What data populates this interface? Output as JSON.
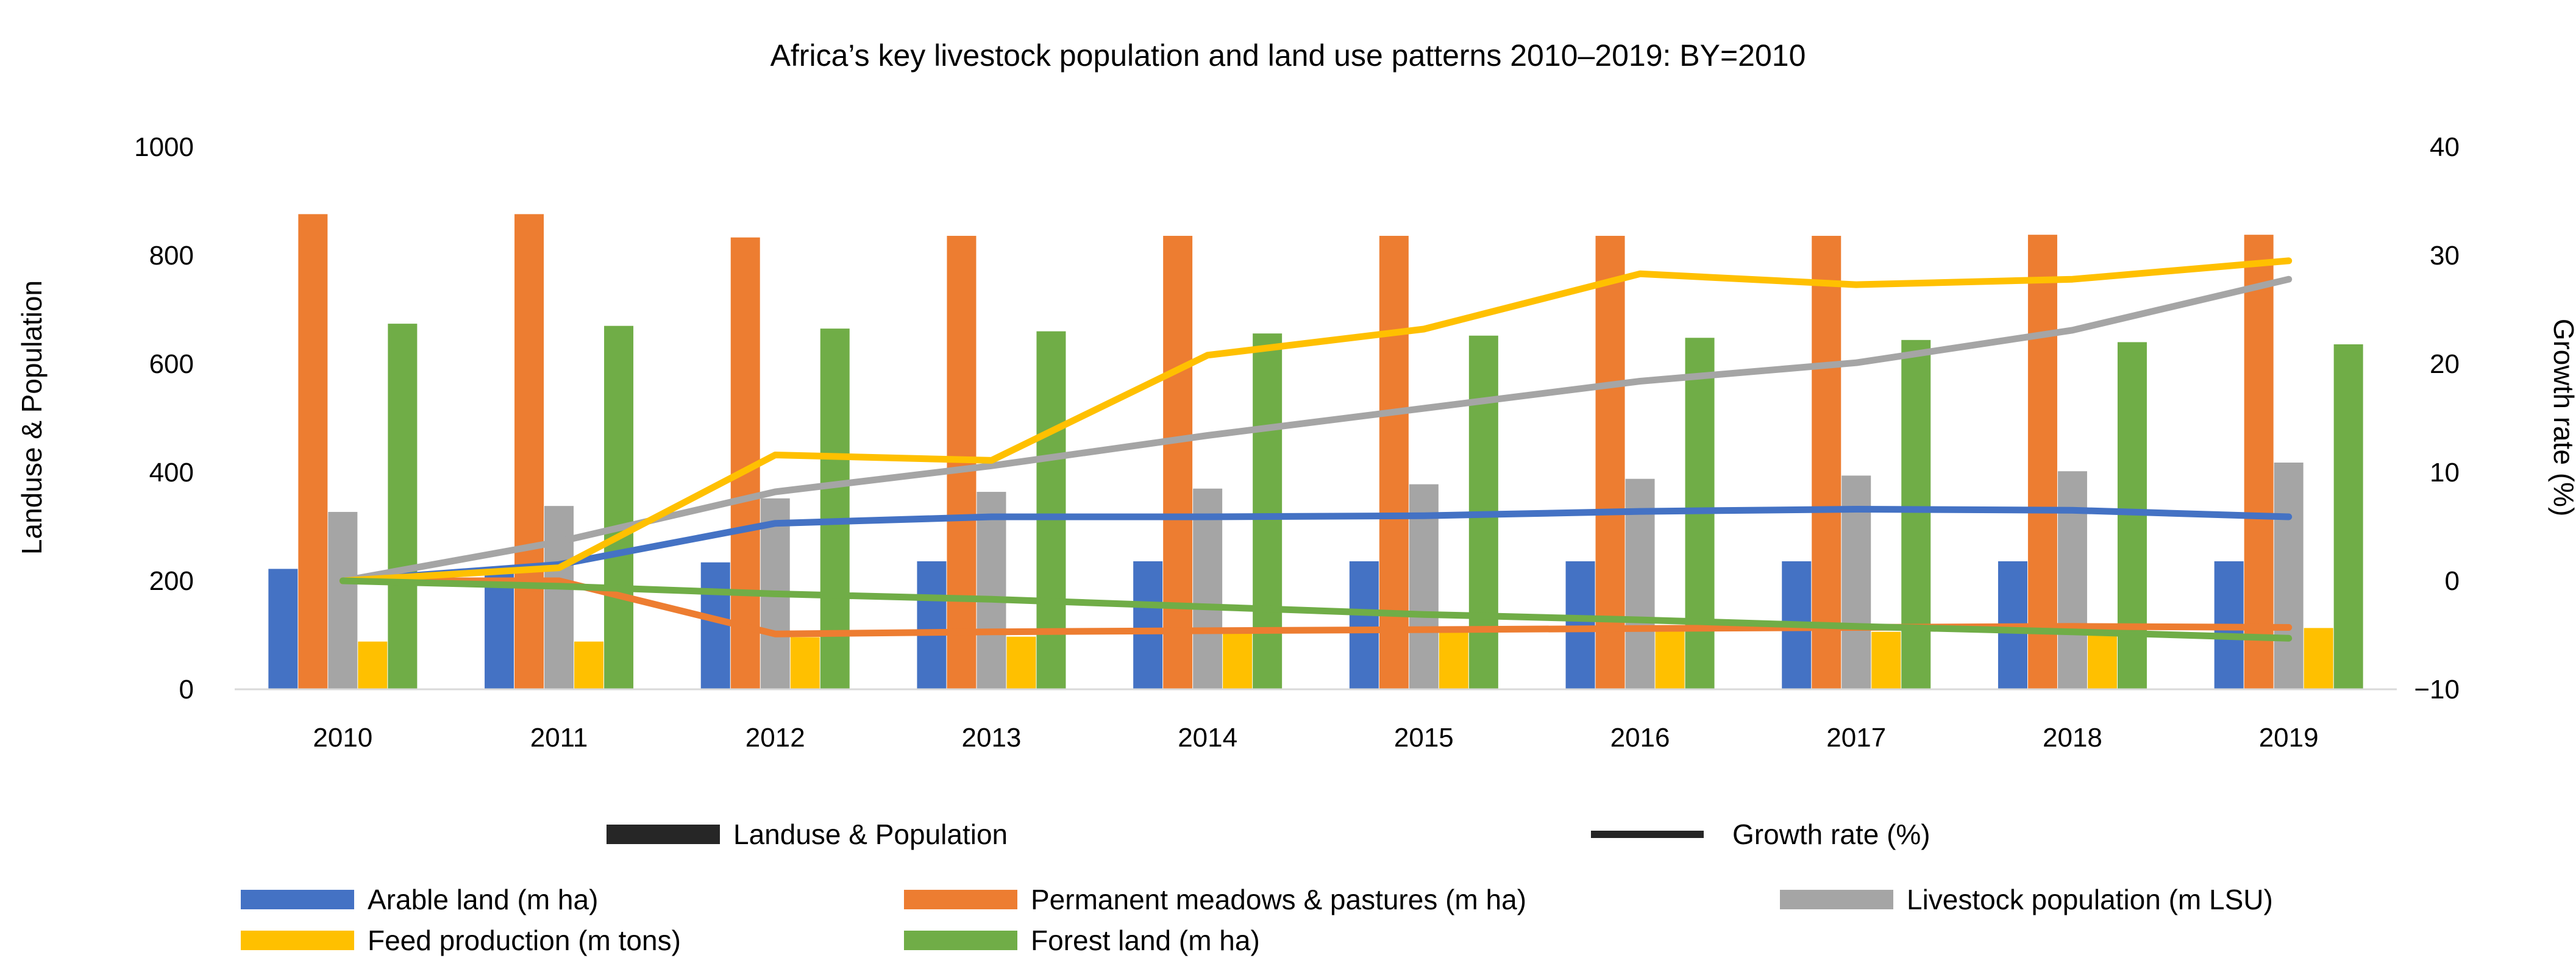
{
  "chart_data": {
    "type": "bar",
    "title": "Africa’s key livestock population and land use patterns 2010–2019: BY=2010",
    "ylabel": "Landuse & Population",
    "y2label": "Growth rate (%)",
    "categories": [
      "2010",
      "2011",
      "2012",
      "2013",
      "2014",
      "2015",
      "2016",
      "2017",
      "2018",
      "2019"
    ],
    "ylim": [
      0,
      1000
    ],
    "yticks": [
      "0",
      "200",
      "400",
      "600",
      "800",
      "1000"
    ],
    "y2lim": [
      -10,
      40
    ],
    "y2ticks": [
      "−10",
      "0",
      "10",
      "20",
      "30",
      "40"
    ],
    "bar_series": [
      {
        "name": "Arable land (m ha)",
        "color": "#4472C4",
        "values": [
          222,
          225,
          234,
          236,
          236,
          236,
          236,
          236,
          236,
          236
        ]
      },
      {
        "name": "Permanent meadows & pastures (m ha)",
        "color": "#ED7D31",
        "values": [
          876,
          876,
          833,
          836,
          836,
          836,
          836,
          836,
          838,
          838
        ]
      },
      {
        "name": "Livestock  population (m LSU)",
        "color": "#A5A5A5",
        "values": [
          327,
          338,
          352,
          364,
          370,
          378,
          388,
          394,
          402,
          418
        ]
      },
      {
        "name": "Feed production (m tons)",
        "color": "#FFC000",
        "values": [
          88,
          88,
          96,
          97,
          107,
          107,
          110,
          106,
          109,
          113
        ]
      },
      {
        "name": "Forest land (m ha)",
        "color": "#70AD47",
        "values": [
          674,
          670,
          665,
          660,
          656,
          652,
          648,
          644,
          640,
          636
        ]
      }
    ],
    "line_series": [
      {
        "name": "Arable land (m ha)",
        "color": "#4472C4",
        "values": [
          0,
          1.5,
          5.3,
          5.9,
          5.9,
          6.0,
          6.4,
          6.6,
          6.5,
          5.9
        ]
      },
      {
        "name": "Permanent meadows & pastures (m ha)",
        "color": "#ED7D31",
        "values": [
          0,
          0,
          -4.9,
          -4.7,
          -4.6,
          -4.5,
          -4.4,
          -4.3,
          -4.2,
          -4.3
        ]
      },
      {
        "name": "Livestock  population (m LSU)",
        "color": "#A5A5A5",
        "values": [
          0,
          3.6,
          8.2,
          10.6,
          13.4,
          15.9,
          18.4,
          20.1,
          23.1,
          27.8
        ]
      },
      {
        "name": "Feed production (m tons)",
        "color": "#FFC000",
        "values": [
          0,
          1.2,
          11.6,
          11.1,
          20.8,
          23.2,
          28.3,
          27.3,
          27.8,
          29.5
        ]
      },
      {
        "name": "Forest land (m ha)",
        "color": "#70AD47",
        "values": [
          0,
          -0.5,
          -1.2,
          -1.7,
          -2.4,
          -3.1,
          -3.6,
          -4.2,
          -4.7,
          -5.3
        ]
      }
    ],
    "legend_group_labels": [
      "Landuse & Population",
      "Growth rate (%)"
    ],
    "legend_placement": "bottom",
    "grid": false
  }
}
